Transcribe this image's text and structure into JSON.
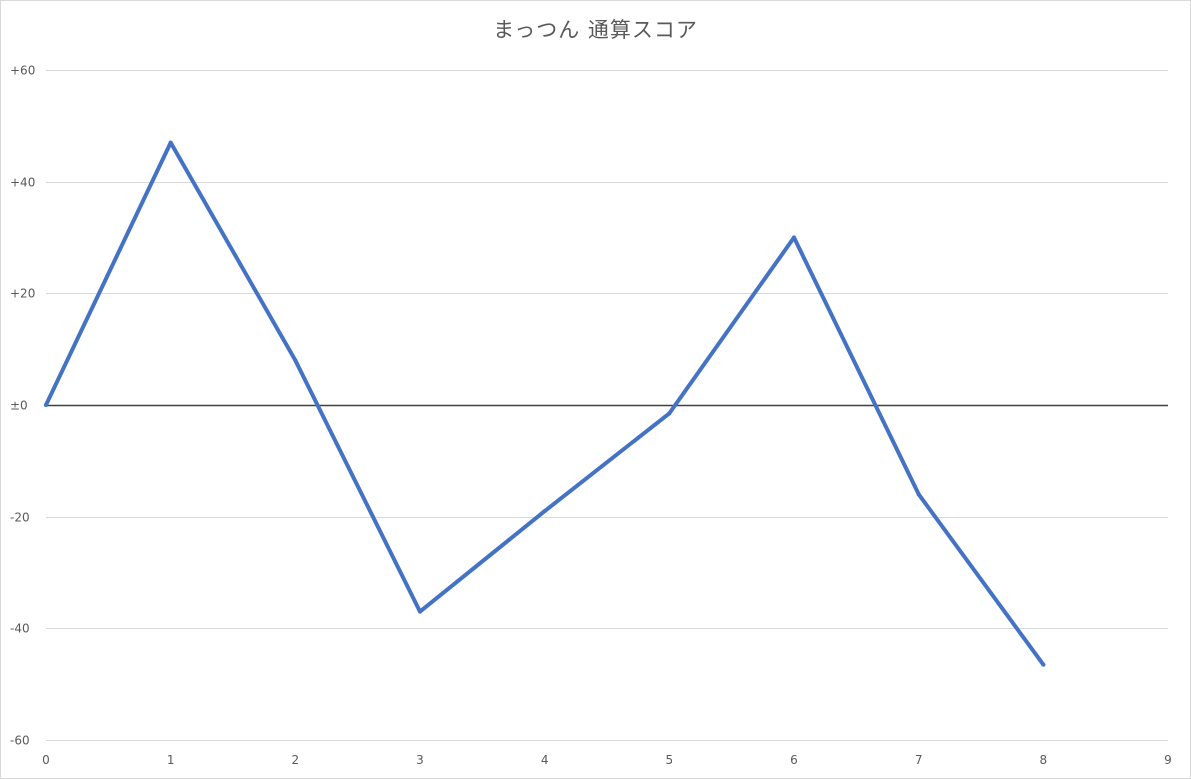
{
  "chart_data": {
    "type": "line",
    "title": "まっつん 通算スコア",
    "xlabel": "",
    "ylabel": "",
    "xlim": [
      0,
      9
    ],
    "ylim": [
      -60,
      60
    ],
    "x_ticks": [
      "0",
      "1",
      "2",
      "3",
      "4",
      "5",
      "6",
      "7",
      "8",
      "9"
    ],
    "y_ticks": [
      {
        "value": 60,
        "label": "+60"
      },
      {
        "value": 40,
        "label": "+40"
      },
      {
        "value": 20,
        "label": "+20"
      },
      {
        "value": 0,
        "label": "±0"
      },
      {
        "value": -20,
        "label": "-20"
      },
      {
        "value": -40,
        "label": "-40"
      },
      {
        "value": -60,
        "label": "-60"
      }
    ],
    "grid": true,
    "legend": "none",
    "series": [
      {
        "color": "#4472c4",
        "x": [
          0,
          1,
          2,
          3,
          4,
          5,
          6,
          7,
          8
        ],
        "y": [
          0,
          47,
          8,
          -37,
          -19,
          -1.5,
          30,
          -16,
          -46.5
        ]
      }
    ]
  }
}
